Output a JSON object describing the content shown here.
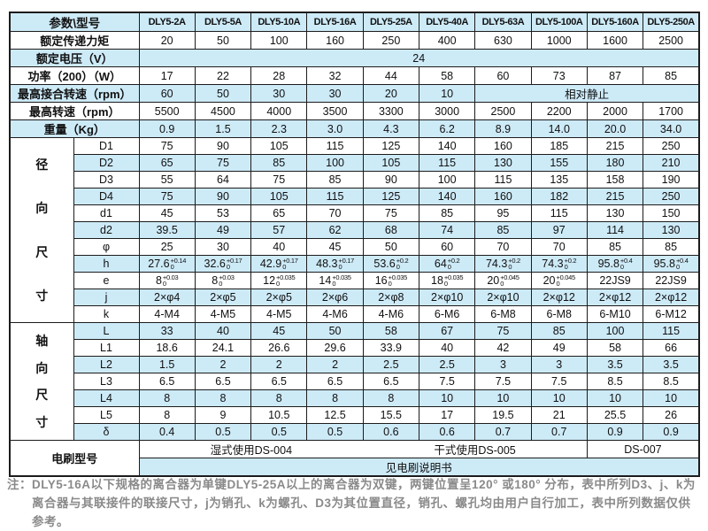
{
  "colors": {
    "row_shade": "#cdeaf7",
    "border": "#1c1c1c",
    "note_gray": "#8a8a8a"
  },
  "table": {
    "corner_label": "参数\\型号",
    "models": [
      "DLY5-2A",
      "DLY5-5A",
      "DLY5-10A",
      "DLY5-16A",
      "DLY5-25A",
      "DLY5-40A",
      "DLY5-63A",
      "DLY5-100A",
      "DLY5-160A",
      "DLY5-250A"
    ],
    "rows": [
      {
        "name": "rated-torque",
        "label": "额定传递力矩",
        "shade": false,
        "cells": [
          "20",
          "50",
          "100",
          "160",
          "250",
          "400",
          "630",
          "1000",
          "1600",
          "2500"
        ]
      },
      {
        "name": "rated-voltage",
        "label": "额定电压（V）",
        "shade": true,
        "cells": [
          {
            "v": "24",
            "span": 10
          }
        ]
      },
      {
        "name": "power",
        "label": "功率（200）（W）",
        "shade": false,
        "cells": [
          "17",
          "22",
          "28",
          "32",
          "44",
          "58",
          "60",
          "73",
          "87",
          "85"
        ]
      },
      {
        "name": "max-engage-speed",
        "label": "最高接合转速（rpm）",
        "shade": true,
        "cells": [
          "60",
          "50",
          "30",
          "30",
          "20",
          "10",
          {
            "v": "相对静止",
            "span": 4
          }
        ]
      },
      {
        "name": "max-speed",
        "label": "最高转速（rpm）",
        "shade": false,
        "cells": [
          "5500",
          "4500",
          "4000",
          "3500",
          "3300",
          "3000",
          "2500",
          "2200",
          "2000",
          "1700"
        ]
      },
      {
        "name": "weight",
        "label": "重量（Kg）",
        "shade": true,
        "cells": [
          "0.9",
          "1.5",
          "2.3",
          "3.0",
          "4.3",
          "6.2",
          "8.9",
          "14.0",
          "20.0",
          "34.0"
        ]
      }
    ],
    "groups": [
      {
        "name": "radial",
        "label": "径向尺寸",
        "rows": [
          {
            "sub": "D1",
            "shade": false,
            "cells": [
              "75",
              "90",
              "105",
              "115",
              "125",
              "140",
              "160",
              "185",
              "215",
              "250"
            ]
          },
          {
            "sub": "D2",
            "shade": true,
            "cells": [
              "65",
              "75",
              "85",
              "100",
              "105",
              "115",
              "130",
              "155",
              "180",
              "210"
            ]
          },
          {
            "sub": "D3",
            "shade": false,
            "cells": [
              "55",
              "64",
              "75",
              "85",
              "90",
              "100",
              "115",
              "135",
              "158",
              "190"
            ]
          },
          {
            "sub": "D4",
            "shade": true,
            "cells": [
              "75",
              "90",
              "105",
              "115",
              "125",
              "140",
              "160",
              "182",
              "215",
              "250"
            ]
          },
          {
            "sub": "d1",
            "shade": false,
            "cells": [
              "45",
              "53",
              "65",
              "70",
              "75",
              "85",
              "95",
              "115",
              "130",
              "150"
            ]
          },
          {
            "sub": "d2",
            "shade": true,
            "cells": [
              "39.5",
              "49",
              "57",
              "62",
              "68",
              "74",
              "85",
              "97",
              "114",
              "130"
            ]
          },
          {
            "sub": "φ",
            "shade": false,
            "cells": [
              "25",
              "30",
              "40",
              "45",
              "50",
              "60",
              "70",
              "70",
              "85",
              "85"
            ]
          },
          {
            "sub": "h",
            "shade": true,
            "cells": [
              {
                "v": "27.6",
                "tol": {
                  "up": "+0.14",
                  "dn": "0"
                }
              },
              {
                "v": "32.6",
                "tol": {
                  "up": "+0.17",
                  "dn": "0"
                }
              },
              {
                "v": "42.9",
                "tol": {
                  "up": "+0.17",
                  "dn": "0"
                }
              },
              {
                "v": "48.3",
                "tol": {
                  "up": "+0.17",
                  "dn": "0"
                }
              },
              {
                "v": "53.6",
                "tol": {
                  "up": "+0.2",
                  "dn": "0"
                }
              },
              {
                "v": "64",
                "tol": {
                  "up": "+0.2",
                  "dn": "0"
                }
              },
              {
                "v": "74.3",
                "tol": {
                  "up": "+0.2",
                  "dn": "0"
                }
              },
              {
                "v": "74.3",
                "tol": {
                  "up": "+0.2",
                  "dn": "0"
                }
              },
              {
                "v": "95.8",
                "tol": {
                  "up": "+0.4",
                  "dn": "0"
                }
              },
              {
                "v": "95.8",
                "tol": {
                  "up": "+0.4",
                  "dn": "0"
                }
              }
            ]
          },
          {
            "sub": "e",
            "shade": false,
            "cells": [
              {
                "v": "8",
                "tol": {
                  "up": "+0.03",
                  "dn": "0"
                }
              },
              {
                "v": "8",
                "tol": {
                  "up": "+0.03",
                  "dn": "0"
                }
              },
              {
                "v": "12",
                "tol": {
                  "up": "+0.035",
                  "dn": "0"
                }
              },
              {
                "v": "14",
                "tol": {
                  "up": "+0.035",
                  "dn": "0"
                }
              },
              {
                "v": "16",
                "tol": {
                  "up": "+0.035",
                  "dn": "0"
                }
              },
              {
                "v": "18",
                "tol": {
                  "up": "+0.035",
                  "dn": "0"
                }
              },
              {
                "v": "20",
                "tol": {
                  "up": "+0.045",
                  "dn": "0"
                }
              },
              {
                "v": "20",
                "tol": {
                  "up": "+0.045",
                  "dn": "0"
                }
              },
              {
                "v": "22JS9"
              },
              {
                "v": "22JS9"
              }
            ]
          },
          {
            "sub": "j",
            "shade": true,
            "cells": [
              "2×φ4",
              "2×φ5",
              "2×φ5",
              "2×φ6",
              "2×φ8",
              "2×φ10",
              "2×φ10",
              "2×φ12",
              "2×φ12",
              "2×φ12"
            ]
          },
          {
            "sub": "k",
            "shade": false,
            "cells": [
              "4-M4",
              "4-M5",
              "4-M5",
              "4-M6",
              "4-M6",
              "6-M6",
              "6-M8",
              "6-M8",
              "6-M10",
              "6-M12"
            ]
          }
        ]
      },
      {
        "name": "axial",
        "label": "轴向尺寸",
        "rows": [
          {
            "sub": "L",
            "shade": true,
            "cells": [
              "33",
              "40",
              "45",
              "50",
              "58",
              "67",
              "75",
              "85",
              "100",
              "115"
            ]
          },
          {
            "sub": "L1",
            "shade": false,
            "cells": [
              "18.6",
              "24.1",
              "26.6",
              "29.6",
              "33.9",
              "40",
              "42",
              "49",
              "58",
              "66"
            ]
          },
          {
            "sub": "L2",
            "shade": true,
            "cells": [
              "1.5",
              "2",
              "2",
              "2",
              "2.5",
              "2.5",
              "3",
              "3",
              "3.5",
              "3.5"
            ]
          },
          {
            "sub": "L3",
            "shade": false,
            "cells": [
              "6.5",
              "6.5",
              "6.5",
              "6.5",
              "6.5",
              "7.5",
              "7.5",
              "7.5",
              "8.5",
              "8.5"
            ]
          },
          {
            "sub": "L4",
            "shade": true,
            "cells": [
              "8",
              "8",
              "8",
              "8",
              "8",
              "10",
              "10",
              "10",
              "10",
              "10"
            ]
          },
          {
            "sub": "L5",
            "shade": false,
            "cells": [
              "8",
              "9",
              "10.5",
              "12.5",
              "15.5",
              "17",
              "19.5",
              "21",
              "25.5",
              "26"
            ]
          },
          {
            "sub": "δ",
            "shade": true,
            "cells": [
              "0.4",
              "0.5",
              "0.5",
              "0.5",
              "0.6",
              "0.6",
              "0.7",
              "0.7",
              "0.9",
              "0.9"
            ]
          }
        ]
      }
    ],
    "brush": {
      "label": "电刷型号",
      "wet": "湿式使用DS-004",
      "dry": "干式使用DS-005",
      "ds007": "DS-007",
      "see": "见电刷说明书"
    }
  },
  "note": {
    "prefix": "注：",
    "text": "DLY5-16A以下规格的离合器为单键DLY5-25A以上的离合器为双键，两键位置呈120° 或180° 分布，表中所列D3、j、k为离合器与其联接件的联接尺寸，j为销孔、k为螺孔、D3为其位置直径，销孔、螺孔均由用户自行加工，表中所列数据仅供参考。"
  }
}
